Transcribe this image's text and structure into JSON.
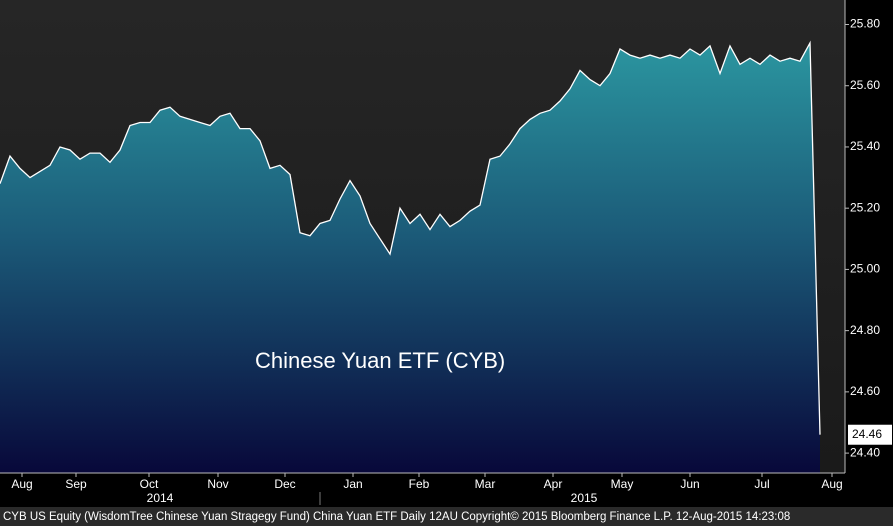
{
  "chart_data": {
    "type": "area",
    "annotation": "Chinese Yuan ETF (CYB)",
    "footer": "CYB US Equity (WisdomTree Chinese Yuan Stragegy Fund) China Yuan ETF  Daily 12AU Copyright© 2015 Bloomberg Finance L.P. 12-Aug-2015 14:23:08",
    "color": "#ffffff",
    "values": [
      25.28,
      25.37,
      25.33,
      25.3,
      25.32,
      25.34,
      25.4,
      25.39,
      25.36,
      25.38,
      25.38,
      25.35,
      25.39,
      25.47,
      25.48,
      25.48,
      25.52,
      25.53,
      25.5,
      25.49,
      25.48,
      25.47,
      25.5,
      25.51,
      25.46,
      25.46,
      25.42,
      25.33,
      25.34,
      25.31,
      25.12,
      25.11,
      25.15,
      25.16,
      25.23,
      25.29,
      25.24,
      25.15,
      25.1,
      25.05,
      25.2,
      25.15,
      25.18,
      25.13,
      25.18,
      25.14,
      25.16,
      25.19,
      25.21,
      25.36,
      25.37,
      25.41,
      25.46,
      25.49,
      25.51,
      25.52,
      25.55,
      25.59,
      25.65,
      25.62,
      25.6,
      25.64,
      25.72,
      25.7,
      25.69,
      25.7,
      25.69,
      25.7,
      25.69,
      25.72,
      25.7,
      25.73,
      25.64,
      25.73,
      25.67,
      25.69,
      25.67,
      25.7,
      25.68,
      25.69,
      25.68,
      25.74,
      24.46
    ],
    "xlim": [
      0,
      84.5
    ],
    "xticks": [
      {
        "value": 2.2,
        "label": "Aug"
      },
      {
        "value": 7.6,
        "label": "Sep"
      },
      {
        "value": 14.9,
        "label": "Oct"
      },
      {
        "value": 21.8,
        "label": "Nov"
      },
      {
        "value": 28.5,
        "label": "Dec"
      },
      {
        "value": 35.3,
        "label": "Jan"
      },
      {
        "value": 41.9,
        "label": "Feb"
      },
      {
        "value": 48.5,
        "label": "Mar"
      },
      {
        "value": 55.3,
        "label": "Apr"
      },
      {
        "value": 62.2,
        "label": "May"
      },
      {
        "value": 69,
        "label": "Jun"
      },
      {
        "value": 76.2,
        "label": "Jul"
      },
      {
        "value": 83.2,
        "label": "Aug"
      }
    ],
    "year_labels": [
      {
        "value": 16,
        "label": "2014"
      },
      {
        "value": 58.4,
        "label": "2015"
      }
    ],
    "ylim": [
      24.335,
      25.88
    ],
    "yticks": [
      {
        "value": 24.4,
        "label": "24.40"
      },
      {
        "value": 24.6,
        "label": "24.60"
      },
      {
        "value": 24.8,
        "label": "24.80"
      },
      {
        "value": 25.0,
        "label": "25.00"
      },
      {
        "value": 25.2,
        "label": "25.20"
      },
      {
        "value": 25.4,
        "label": "25.40"
      },
      {
        "value": 25.6,
        "label": "25.60"
      },
      {
        "value": 25.8,
        "label": "25.80"
      }
    ]
  }
}
